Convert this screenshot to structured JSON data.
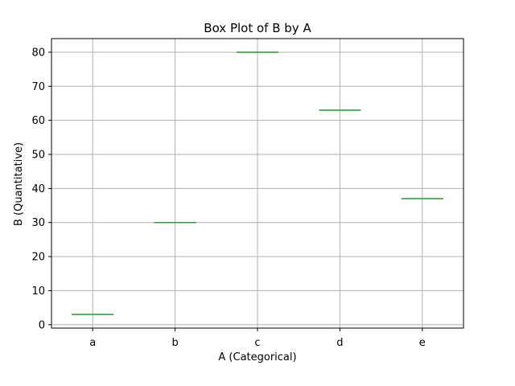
{
  "chart_data": {
    "type": "box",
    "title": "Box Plot of B by A",
    "xlabel": "A (Categorical)",
    "ylabel": "B (Quantitative)",
    "categories": [
      "a",
      "b",
      "c",
      "d",
      "e"
    ],
    "values": [
      3,
      30,
      80,
      63,
      37
    ],
    "ylim": [
      -1,
      84
    ],
    "yticks": [
      0,
      10,
      20,
      30,
      40,
      50,
      60,
      70,
      80
    ],
    "grid": true,
    "colors": {
      "box": "#3b75af",
      "median": "#2ca02c",
      "grid": "#b0b0b0",
      "axis": "#000000"
    }
  }
}
